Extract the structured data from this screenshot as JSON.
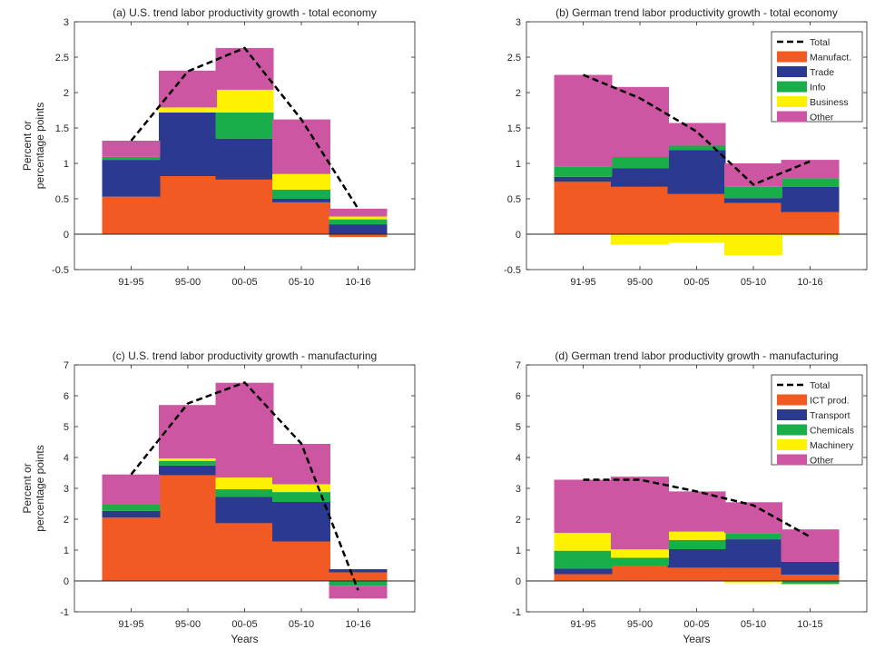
{
  "colors": {
    "total": "#000000",
    "stack": [
      "#f15a22",
      "#2b3990",
      "#1aae4a",
      "#fff200",
      "#cd56a3"
    ],
    "axis": "#262626"
  },
  "chart_data": [
    {
      "type": "bar",
      "stacked": true,
      "title": "(a) U.S. trend labor productivity growth - total economy",
      "xlabel": "",
      "ylabel": "Percent or percentage points",
      "ylim": [
        -0.5,
        3
      ],
      "yticks": [
        -0.5,
        0,
        0.5,
        1,
        1.5,
        2,
        2.5,
        3
      ],
      "ytick_labels": [
        "-0.5",
        "0",
        "0.5",
        "1",
        "1.5",
        "2",
        "2.5",
        "3"
      ],
      "categories": [
        "91-95",
        "95-00",
        "00-05",
        "05-10",
        "10-16"
      ],
      "legend": false,
      "series": [
        {
          "name": "Manufact.",
          "values": [
            0.53,
            0.82,
            0.77,
            0.45,
            -0.04
          ]
        },
        {
          "name": "Trade",
          "values": [
            0.52,
            0.9,
            0.58,
            0.05,
            0.14
          ]
        },
        {
          "name": "Info",
          "values": [
            0.04,
            0.0,
            0.37,
            0.13,
            0.07
          ]
        },
        {
          "name": "Business",
          "values": [
            0.0,
            0.07,
            0.32,
            0.22,
            0.04
          ]
        },
        {
          "name": "Other",
          "values": [
            0.23,
            0.52,
            0.59,
            0.77,
            0.11
          ]
        }
      ],
      "total": [
        1.32,
        2.3,
        2.63,
        1.62,
        0.36
      ]
    },
    {
      "type": "bar",
      "stacked": true,
      "title": "(b) German trend labor productivity growth - total economy",
      "xlabel": "",
      "ylabel": "",
      "ylim": [
        -0.5,
        3
      ],
      "yticks": [
        -0.5,
        0,
        0.5,
        1,
        1.5,
        2,
        2.5,
        3
      ],
      "ytick_labels": [
        "-0.5",
        "0",
        "0.5",
        "1",
        "1.5",
        "2",
        "2.5",
        "3"
      ],
      "categories": [
        "91-95",
        "95-00",
        "00-05",
        "05-10",
        "10-16"
      ],
      "legend": true,
      "legend_position": "top-right",
      "legend_total": "Total",
      "series": [
        {
          "name": "Manufact.",
          "values": [
            0.74,
            0.67,
            0.57,
            0.44,
            0.31
          ]
        },
        {
          "name": "Trade",
          "values": [
            0.07,
            0.26,
            0.62,
            0.07,
            0.36
          ]
        },
        {
          "name": "Info",
          "values": [
            0.14,
            0.16,
            0.06,
            0.16,
            0.12
          ]
        },
        {
          "name": "Business",
          "values": [
            0.0,
            -0.15,
            -0.12,
            -0.3,
            -0.02
          ]
        },
        {
          "name": "Other",
          "values": [
            1.3,
            0.99,
            0.32,
            0.33,
            0.26
          ]
        }
      ],
      "total": [
        2.25,
        1.92,
        1.45,
        0.7,
        1.03
      ]
    },
    {
      "type": "bar",
      "stacked": true,
      "title": "(c) U.S. trend labor productivity growth - manufacturing",
      "xlabel": "Years",
      "ylabel": "Percent or percentage points",
      "ylim": [
        -1,
        7
      ],
      "yticks": [
        -1,
        0,
        1,
        2,
        3,
        4,
        5,
        6,
        7
      ],
      "ytick_labels": [
        "-1",
        "0",
        "1",
        "2",
        "3",
        "4",
        "5",
        "6",
        "7"
      ],
      "categories": [
        "91-95",
        "95-00",
        "00-05",
        "05-10",
        "10-16"
      ],
      "legend": false,
      "series": [
        {
          "name": "ICT prod.",
          "values": [
            2.05,
            3.42,
            1.87,
            1.28,
            0.28
          ]
        },
        {
          "name": "Transport",
          "values": [
            0.22,
            0.32,
            0.85,
            1.28,
            0.1
          ]
        },
        {
          "name": "Chemicals",
          "values": [
            0.2,
            0.15,
            0.25,
            0.32,
            -0.15
          ]
        },
        {
          "name": "Machinery",
          "values": [
            0.0,
            0.08,
            0.38,
            0.25,
            0.0
          ]
        },
        {
          "name": "Other",
          "values": [
            0.98,
            1.73,
            3.07,
            1.31,
            -0.42
          ]
        }
      ],
      "total": [
        3.45,
        5.75,
        6.43,
        4.45,
        -0.3
      ]
    },
    {
      "type": "bar",
      "stacked": true,
      "title": "(d) German trend labor productivity growth - manufacturing",
      "xlabel": "Years",
      "ylabel": "",
      "ylim": [
        -1,
        7
      ],
      "yticks": [
        -1,
        0,
        1,
        2,
        3,
        4,
        5,
        6,
        7
      ],
      "ytick_labels": [
        "-1",
        "0",
        "1",
        "2",
        "3",
        "4",
        "5",
        "6",
        "7"
      ],
      "categories": [
        "91-95",
        "95-00",
        "00-05",
        "05-10",
        "10-15"
      ],
      "legend": true,
      "legend_position": "top-right",
      "legend_total": "Total",
      "series": [
        {
          "name": "ICT prod.",
          "values": [
            0.22,
            0.5,
            0.43,
            0.43,
            0.2
          ]
        },
        {
          "name": "Transport",
          "values": [
            0.18,
            0.0,
            0.6,
            0.92,
            0.42
          ]
        },
        {
          "name": "Chemicals",
          "values": [
            0.58,
            0.25,
            0.3,
            0.2,
            -0.1
          ]
        },
        {
          "name": "Machinery",
          "values": [
            0.58,
            0.27,
            0.27,
            -0.07,
            -0.02
          ]
        },
        {
          "name": "Other",
          "values": [
            1.72,
            2.36,
            1.3,
            1.0,
            1.05
          ]
        }
      ],
      "total": [
        3.28,
        3.28,
        2.9,
        2.45,
        1.43
      ]
    }
  ]
}
